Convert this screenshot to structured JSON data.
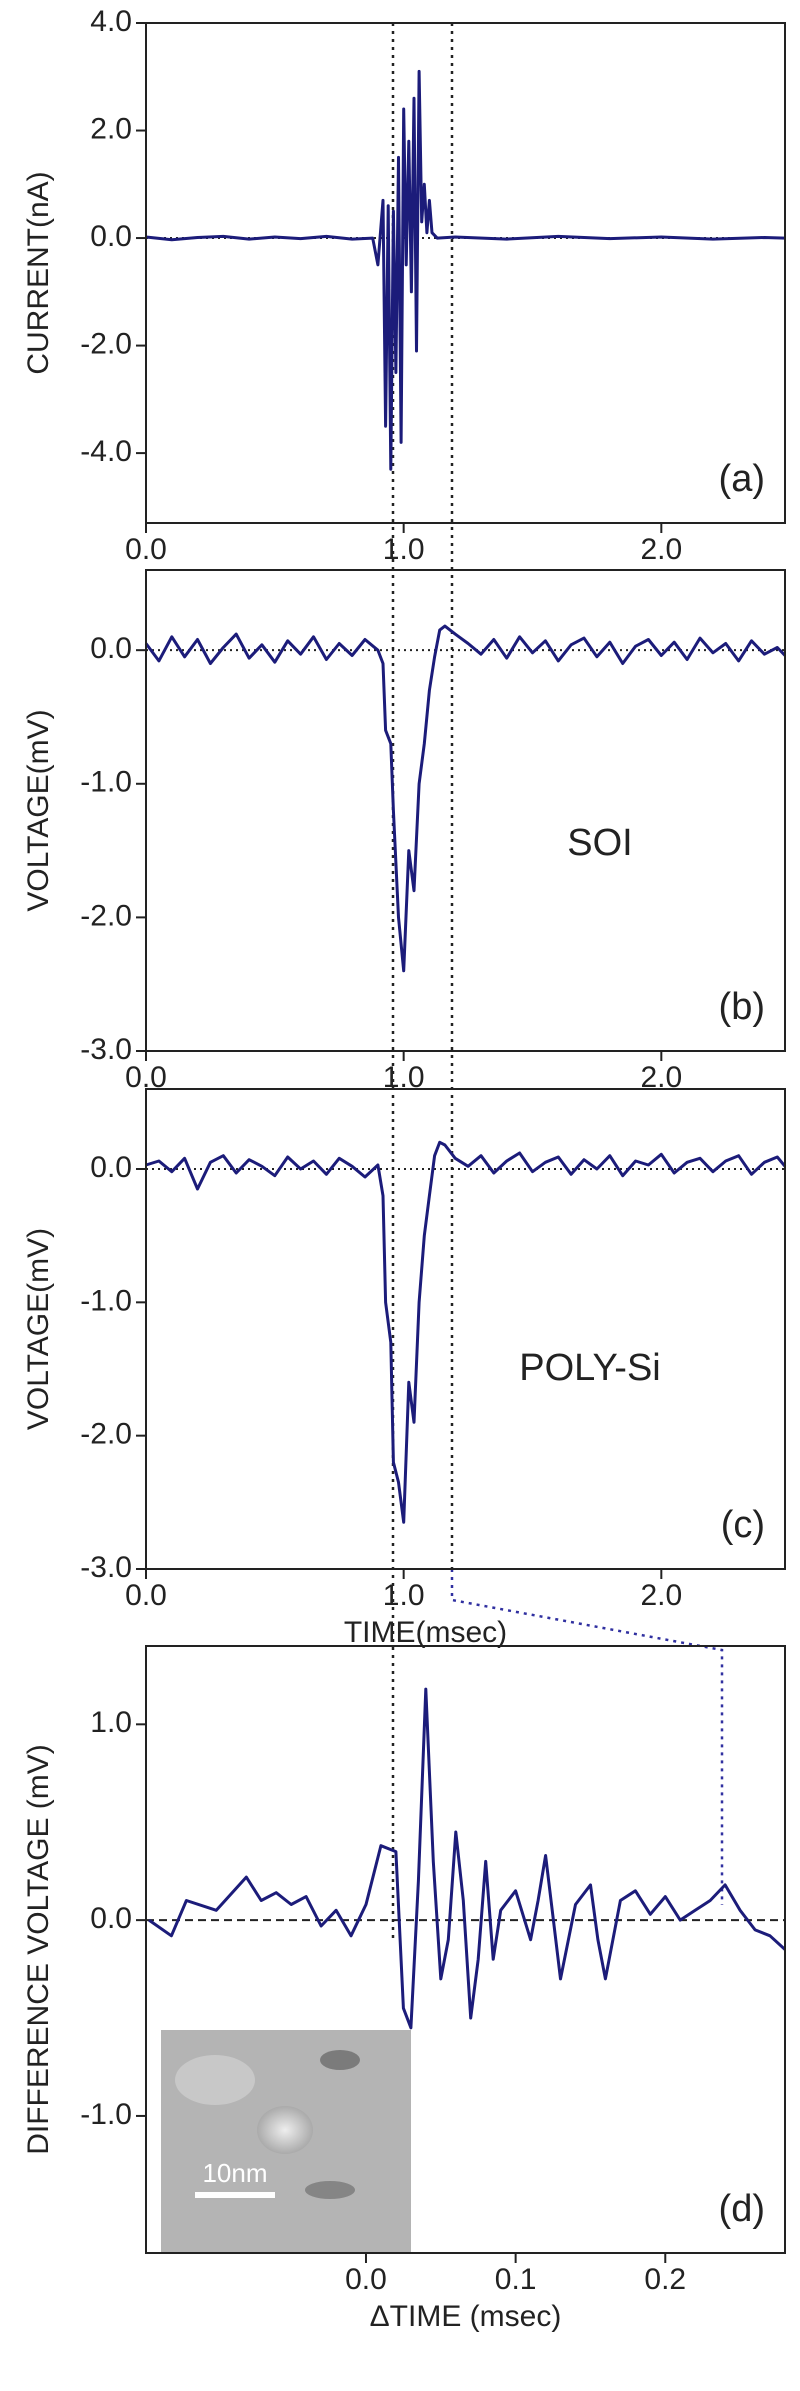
{
  "chart_data": [
    {
      "type": "line",
      "ylabel": "CURRENT(nA)",
      "panel_label": "(a)",
      "color": "#1c1c7a",
      "xlim": [
        0,
        2.48
      ],
      "ylim": [
        -5.3,
        4.0
      ],
      "xticks": [
        {
          "value": 0,
          "label": "0.0"
        },
        {
          "value": 1,
          "label": "1.0"
        },
        {
          "value": 2,
          "label": "2.0"
        }
      ],
      "yticks": [
        {
          "value": -4,
          "label": "-4.0"
        },
        {
          "value": -2,
          "label": "-2.0"
        },
        {
          "value": 0,
          "label": "0.0"
        },
        {
          "value": 2,
          "label": "2.0"
        },
        {
          "value": 4,
          "label": "4.0"
        }
      ],
      "x": [
        0,
        0.1,
        0.2,
        0.3,
        0.4,
        0.5,
        0.6,
        0.7,
        0.8,
        0.88,
        0.9,
        0.92,
        0.93,
        0.94,
        0.95,
        0.96,
        0.97,
        0.98,
        0.99,
        1.0,
        1.01,
        1.02,
        1.03,
        1.04,
        1.05,
        1.06,
        1.07,
        1.08,
        1.09,
        1.1,
        1.11,
        1.13,
        1.2,
        1.4,
        1.6,
        1.8,
        2.0,
        2.2,
        2.4,
        2.48
      ],
      "values": [
        0.02,
        -0.03,
        0.01,
        0.03,
        -0.02,
        0.02,
        -0.01,
        0.03,
        -0.02,
        0.0,
        -0.5,
        0.7,
        -3.5,
        0.6,
        -4.3,
        0.5,
        -2.5,
        1.5,
        -3.8,
        2.4,
        -0.5,
        1.8,
        -1.0,
        2.6,
        -2.1,
        3.1,
        0.3,
        1.0,
        0.1,
        0.7,
        0.1,
        0.0,
        0.02,
        -0.02,
        0.03,
        -0.01,
        0.02,
        -0.02,
        0.01,
        0.0
      ]
    },
    {
      "type": "line",
      "ylabel": "VOLTAGE(mV)",
      "panel_label": "(b)",
      "annotation": "SOI",
      "color": "#1c1c7a",
      "xlim": [
        0,
        2.48
      ],
      "ylim": [
        -3.0,
        0.6
      ],
      "xticks": [
        {
          "value": 0,
          "label": "0.0"
        },
        {
          "value": 1,
          "label": "1.0"
        },
        {
          "value": 2,
          "label": "2.0"
        }
      ],
      "yticks": [
        {
          "value": 0,
          "label": "0.0"
        },
        {
          "value": -1,
          "label": "-1.0"
        },
        {
          "value": -2,
          "label": "-2.0"
        },
        {
          "value": -3,
          "label": "-3.0"
        }
      ],
      "x": [
        0,
        0.05,
        0.1,
        0.15,
        0.2,
        0.25,
        0.3,
        0.35,
        0.4,
        0.45,
        0.5,
        0.55,
        0.6,
        0.65,
        0.7,
        0.75,
        0.8,
        0.85,
        0.9,
        0.92,
        0.93,
        0.95,
        0.96,
        0.98,
        1.0,
        1.02,
        1.04,
        1.06,
        1.08,
        1.1,
        1.12,
        1.14,
        1.16,
        1.2,
        1.25,
        1.3,
        1.35,
        1.4,
        1.45,
        1.5,
        1.55,
        1.6,
        1.65,
        1.7,
        1.75,
        1.8,
        1.85,
        1.9,
        1.95,
        2.0,
        2.05,
        2.1,
        2.15,
        2.2,
        2.25,
        2.3,
        2.35,
        2.4,
        2.45,
        2.48
      ],
      "values": [
        0.05,
        -0.08,
        0.1,
        -0.05,
        0.08,
        -0.1,
        0.02,
        0.12,
        -0.06,
        0.04,
        -0.09,
        0.07,
        -0.03,
        0.1,
        -0.07,
        0.05,
        -0.04,
        0.08,
        0.0,
        -0.1,
        -0.6,
        -0.7,
        -1.2,
        -2.0,
        -2.4,
        -1.5,
        -1.8,
        -1.0,
        -0.7,
        -0.3,
        -0.05,
        0.15,
        0.18,
        0.12,
        0.05,
        -0.03,
        0.08,
        -0.06,
        0.1,
        -0.02,
        0.07,
        -0.08,
        0.04,
        0.09,
        -0.05,
        0.06,
        -0.1,
        0.03,
        0.08,
        -0.04,
        0.06,
        -0.07,
        0.09,
        -0.02,
        0.05,
        -0.08,
        0.07,
        -0.03,
        0.02,
        -0.04
      ]
    },
    {
      "type": "line",
      "ylabel": "VOLTAGE(mV)",
      "panel_label": "(c)",
      "annotation": "POLY-Si",
      "xlabel": "TIME(msec)",
      "color": "#1c1c7a",
      "xlim": [
        0,
        2.48
      ],
      "ylim": [
        -3.0,
        0.6
      ],
      "xticks": [
        {
          "value": 0,
          "label": "0.0"
        },
        {
          "value": 1,
          "label": "1.0"
        },
        {
          "value": 2,
          "label": "2.0"
        }
      ],
      "yticks": [
        {
          "value": 0,
          "label": "0.0"
        },
        {
          "value": -1,
          "label": "-1.0"
        },
        {
          "value": -2,
          "label": "-2.0"
        },
        {
          "value": -3,
          "label": "-3.0"
        }
      ],
      "x": [
        0,
        0.05,
        0.1,
        0.15,
        0.2,
        0.25,
        0.3,
        0.35,
        0.4,
        0.45,
        0.5,
        0.55,
        0.6,
        0.65,
        0.7,
        0.75,
        0.8,
        0.85,
        0.9,
        0.92,
        0.93,
        0.95,
        0.96,
        0.98,
        1.0,
        1.02,
        1.04,
        1.06,
        1.08,
        1.1,
        1.12,
        1.14,
        1.16,
        1.2,
        1.25,
        1.3,
        1.35,
        1.4,
        1.45,
        1.5,
        1.55,
        1.6,
        1.65,
        1.7,
        1.75,
        1.8,
        1.85,
        1.9,
        1.95,
        2.0,
        2.05,
        2.1,
        2.15,
        2.2,
        2.25,
        2.3,
        2.35,
        2.4,
        2.45,
        2.48
      ],
      "values": [
        0.03,
        0.06,
        -0.02,
        0.08,
        -0.15,
        0.05,
        0.1,
        -0.03,
        0.07,
        0.02,
        -0.05,
        0.09,
        0.0,
        0.06,
        -0.04,
        0.08,
        0.02,
        -0.06,
        0.03,
        -0.2,
        -1.0,
        -1.3,
        -2.2,
        -2.35,
        -2.65,
        -1.6,
        -1.9,
        -1.0,
        -0.5,
        -0.2,
        0.1,
        0.2,
        0.18,
        0.08,
        0.02,
        0.1,
        -0.03,
        0.06,
        0.12,
        -0.02,
        0.05,
        0.09,
        -0.04,
        0.07,
        0.0,
        0.1,
        -0.05,
        0.06,
        0.03,
        0.11,
        -0.03,
        0.05,
        0.08,
        -0.02,
        0.06,
        0.1,
        -0.04,
        0.05,
        0.09,
        0.02
      ]
    },
    {
      "type": "line",
      "ylabel": "DIFFERENCE VOLTAGE (mV)",
      "panel_label": "(d)",
      "xlabel": "ΔTIME (msec)",
      "inset_label": "10nm",
      "color": "#1c1c7a",
      "xlim": [
        -0.147,
        0.28
      ],
      "ylim": [
        -1.7,
        1.4
      ],
      "xticks": [
        {
          "value": 0,
          "label": "0.0"
        },
        0.1,
        0.2
      ],
      "yticks": [
        {
          "value": -1,
          "label": "-1.0"
        },
        {
          "value": 0,
          "label": "0.0"
        },
        {
          "value": 1,
          "label": "1.0"
        }
      ],
      "x": [
        -0.145,
        -0.13,
        -0.12,
        -0.1,
        -0.08,
        -0.07,
        -0.06,
        -0.05,
        -0.04,
        -0.03,
        -0.02,
        -0.01,
        0.0,
        0.01,
        0.02,
        0.025,
        0.03,
        0.035,
        0.04,
        0.045,
        0.05,
        0.055,
        0.06,
        0.065,
        0.07,
        0.075,
        0.08,
        0.085,
        0.09,
        0.1,
        0.11,
        0.115,
        0.12,
        0.13,
        0.14,
        0.15,
        0.155,
        0.16,
        0.17,
        0.18,
        0.19,
        0.2,
        0.21,
        0.22,
        0.23,
        0.24,
        0.25,
        0.26,
        0.27,
        0.28
      ],
      "values": [
        0.0,
        -0.08,
        0.1,
        0.05,
        0.22,
        0.1,
        0.14,
        0.08,
        0.12,
        -0.03,
        0.05,
        -0.08,
        0.08,
        0.38,
        0.35,
        -0.45,
        -0.55,
        0.2,
        1.18,
        0.3,
        -0.3,
        -0.1,
        0.45,
        0.1,
        -0.5,
        -0.2,
        0.3,
        -0.2,
        0.05,
        0.15,
        -0.1,
        0.1,
        0.33,
        -0.3,
        0.08,
        0.18,
        -0.1,
        -0.3,
        0.1,
        0.15,
        0.03,
        0.12,
        0.0,
        0.05,
        0.1,
        0.18,
        0.05,
        -0.05,
        -0.08,
        -0.15
      ]
    }
  ]
}
